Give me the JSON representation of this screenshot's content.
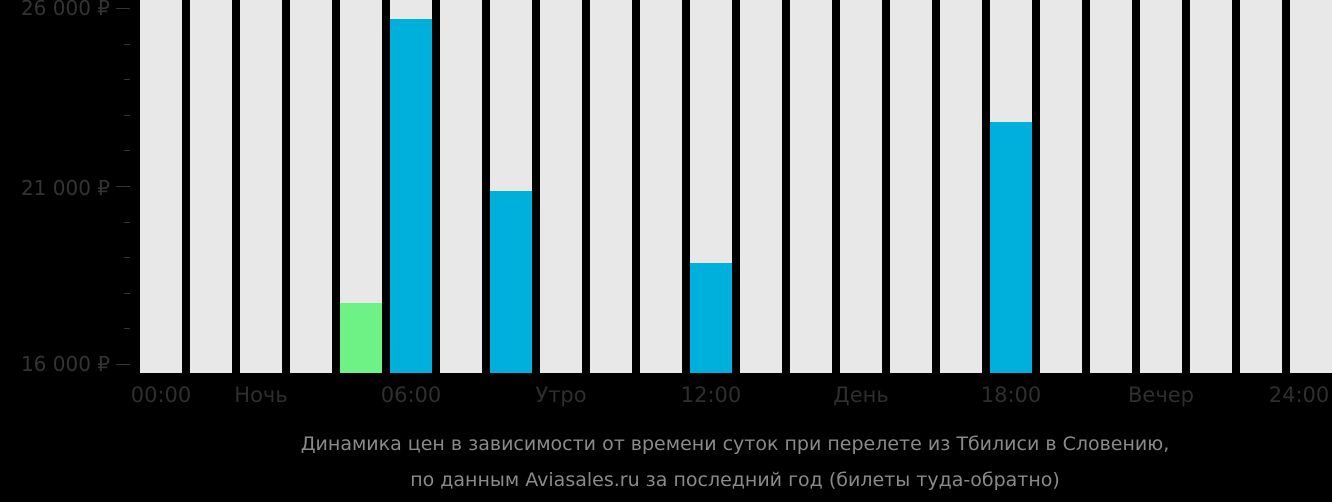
{
  "chart_data": {
    "type": "bar",
    "title": "Динамика цен в зависимости от времени суток при перелете из Тбилиси в Словению, по данным Aviasales.ru за последний год (билеты туда-обратно)",
    "xlabel": "",
    "ylabel": "",
    "ylim": [
      16000,
      26300
    ],
    "y_ticks": [
      "26 000 ₽",
      "21 000 ₽",
      "16 000 ₽"
    ],
    "x_ticks": [
      "00:00",
      "Ночь",
      "06:00",
      "Утро",
      "12:00",
      "День",
      "18:00",
      "Вечер",
      "24:00"
    ],
    "categories": [
      "00",
      "01",
      "02",
      "03",
      "04",
      "05",
      "06",
      "07",
      "08",
      "09",
      "10",
      "11",
      "12",
      "13",
      "14",
      "15",
      "16",
      "17",
      "18",
      "19",
      "20",
      "21",
      "22",
      "23"
    ],
    "values": [
      null,
      null,
      null,
      null,
      17700,
      25700,
      null,
      20850,
      null,
      null,
      null,
      18850,
      null,
      null,
      null,
      null,
      null,
      22800,
      null,
      null,
      null,
      null,
      null,
      null
    ],
    "highlight": {
      "index": 4,
      "color": "#6ef286",
      "label": "cheapest"
    },
    "colors": {
      "bar": "#00b0dc",
      "cheapest": "#6ef286",
      "empty": "#e8e8e8",
      "background": "#000000"
    },
    "grid": false,
    "legend": null
  },
  "y_axis": {
    "labels": [
      {
        "text": "26 000 ₽",
        "value": 26000
      },
      {
        "text": "21 000 ₽",
        "value": 21000
      },
      {
        "text": "16 000 ₽",
        "value": 16000
      }
    ]
  },
  "x_axis": {
    "labels": [
      {
        "text": "00:00",
        "pos": 161
      },
      {
        "text": "Ночь",
        "pos": 261
      },
      {
        "text": "06:00",
        "pos": 411
      },
      {
        "text": "Утро",
        "pos": 561
      },
      {
        "text": "12:00",
        "pos": 711
      },
      {
        "text": "День",
        "pos": 861
      },
      {
        "text": "18:00",
        "pos": 1011
      },
      {
        "text": "Вечер",
        "pos": 1161
      },
      {
        "text": "24:00",
        "pos": 1299
      }
    ]
  },
  "caption": {
    "line1": "Динамика цен в зависимости от времени суток при перелете из Тбилиси в Словению,",
    "line2": "по данным Aviasales.ru за последний год (билеты туда-обратно)"
  }
}
